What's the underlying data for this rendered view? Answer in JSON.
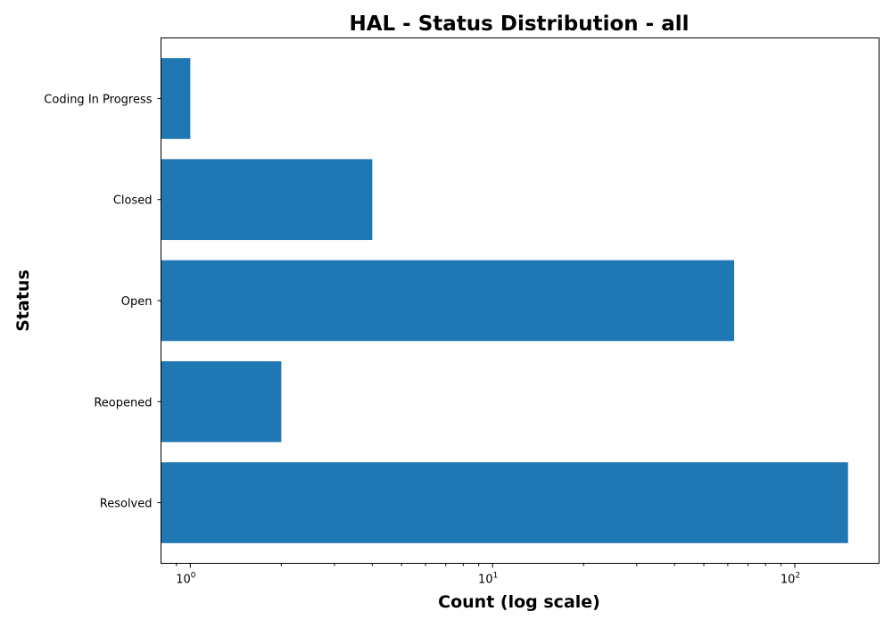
{
  "chart_data": {
    "type": "bar",
    "orientation": "horizontal",
    "title": "HAL - Status Distribution - all",
    "xlabel": "Count (log scale)",
    "ylabel": "Status",
    "xscale": "log",
    "xlim": [
      0.8,
      190
    ],
    "categories": [
      "Coding In Progress",
      "Closed",
      "Open",
      "Reopened",
      "Resolved"
    ],
    "values": [
      1,
      4,
      63,
      2,
      150
    ],
    "x_ticks": [
      {
        "value": 1,
        "base": "10",
        "exp": "0"
      },
      {
        "value": 10,
        "base": "10",
        "exp": "1"
      },
      {
        "value": 100,
        "base": "10",
        "exp": "2"
      }
    ],
    "bar_color": "#1f77b4",
    "grid": false,
    "legend": "none"
  }
}
